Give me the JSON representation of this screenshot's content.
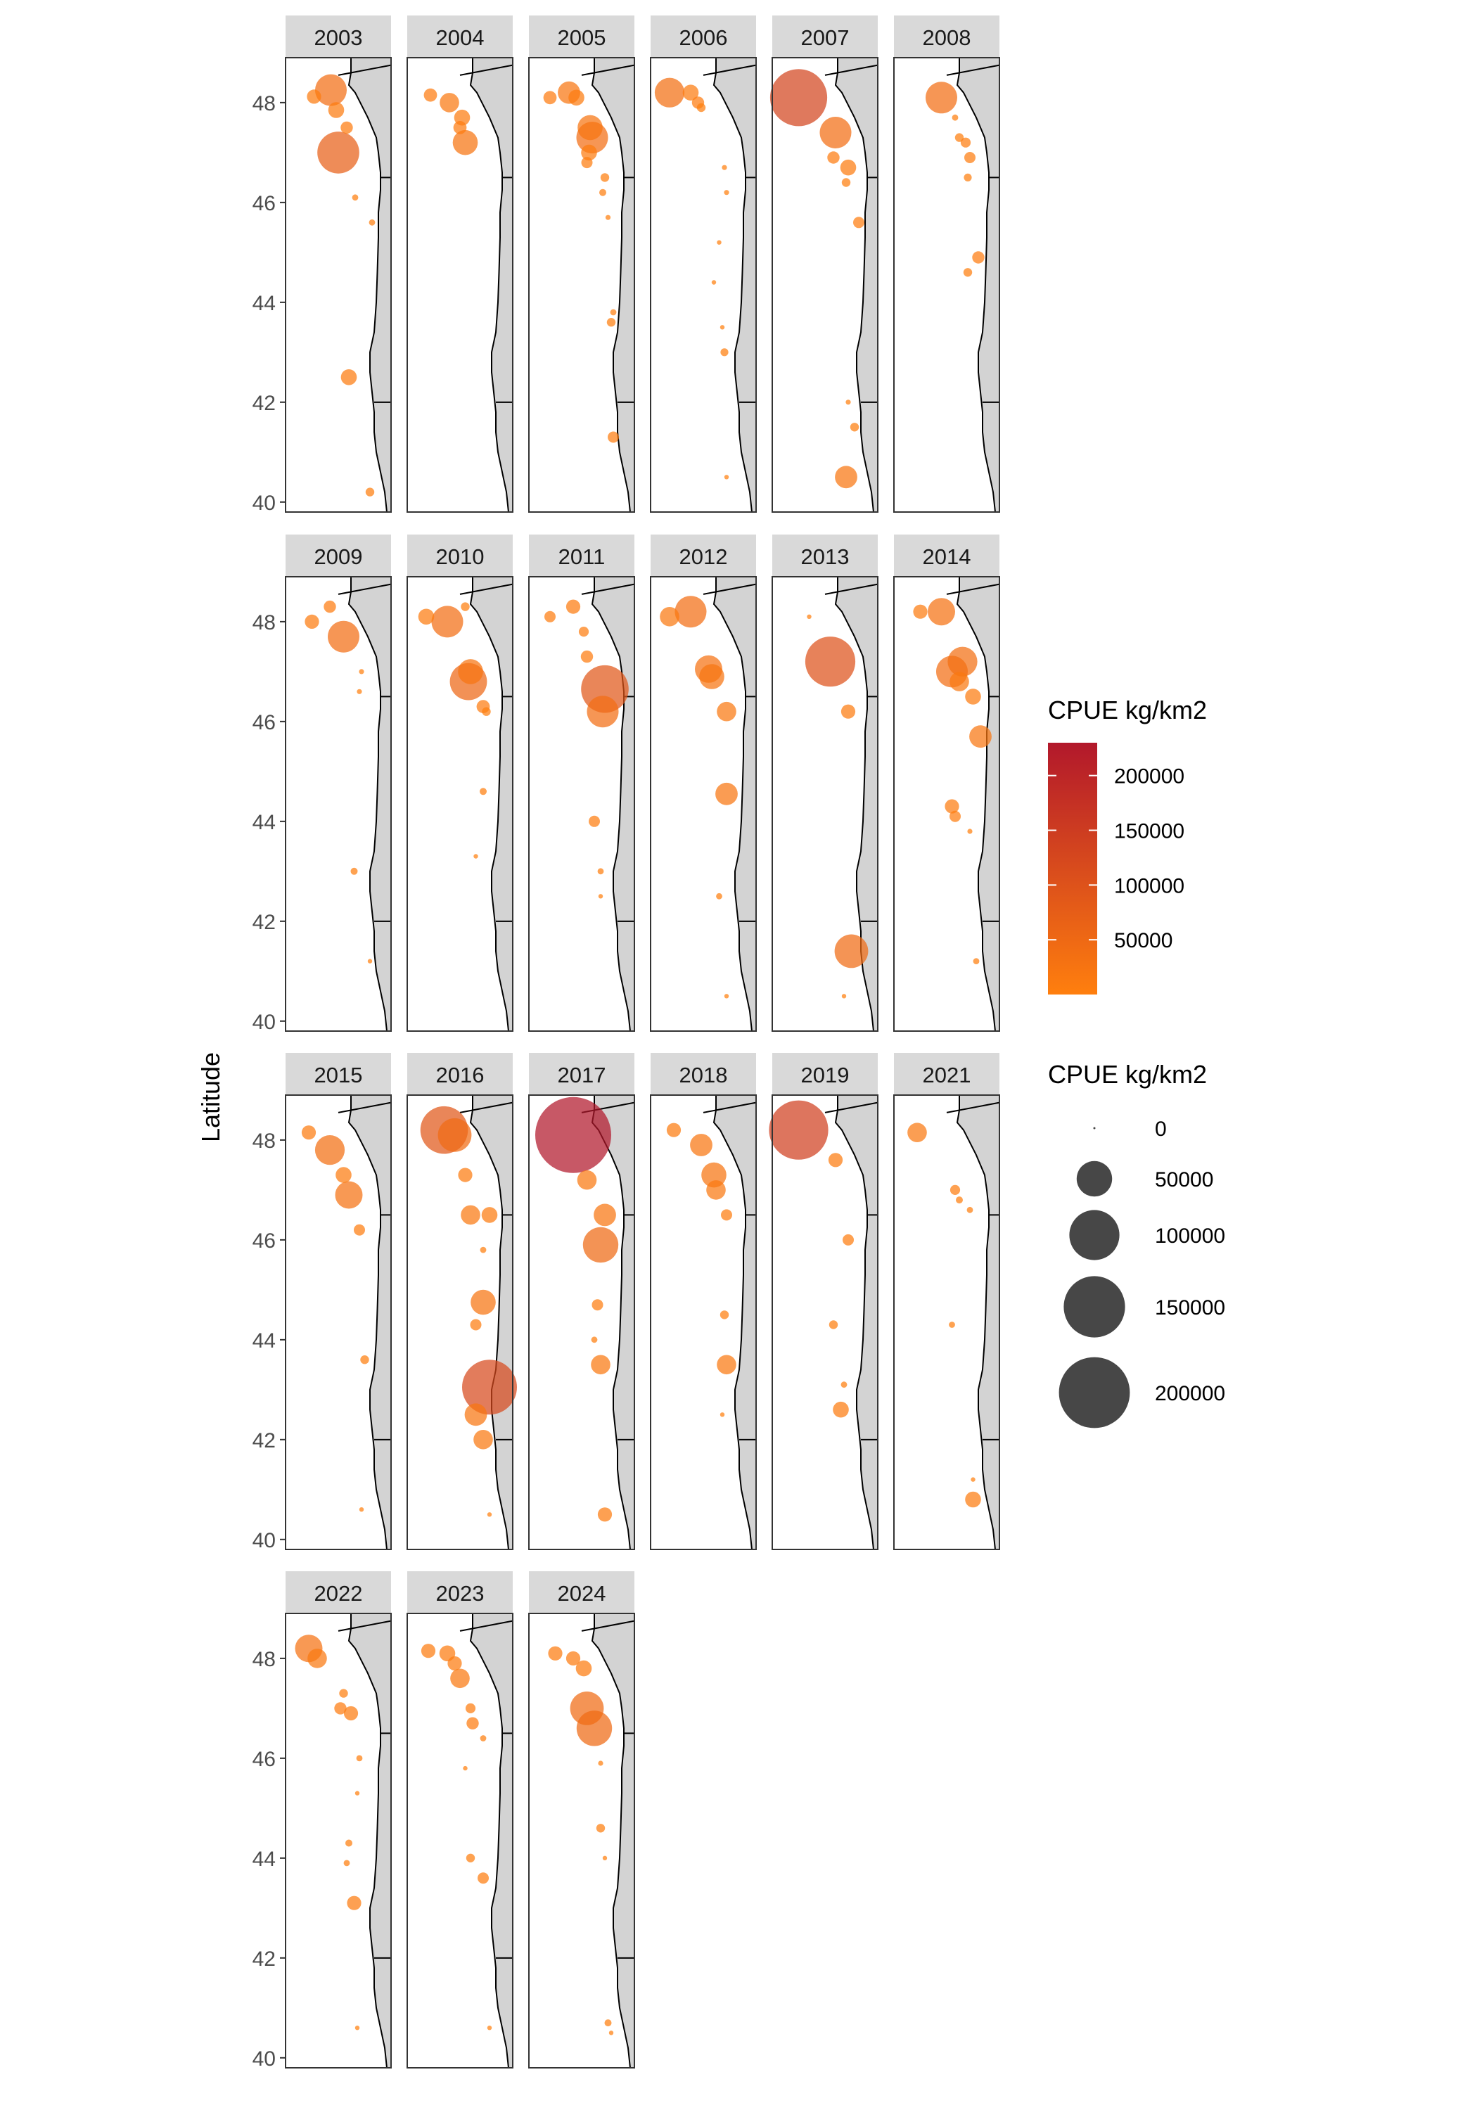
{
  "colors": {
    "panel_border": "#333333",
    "strip_bg": "#d9d9d9",
    "land": "#d3d3d3",
    "coast": "#000000",
    "haul_dot": "#cfcfcf",
    "cpue_low": "#ff7f0e",
    "cpue_high": "#b2182b",
    "legend_size_dot": "#474747"
  },
  "chart_data": {
    "type": "scatter",
    "subtype": "faceted bubble map",
    "title": "",
    "xlabel": "",
    "ylabel": "Latitude",
    "ylim": [
      39.8,
      48.9
    ],
    "y_ticks": [
      40,
      42,
      44,
      46,
      48
    ],
    "y_tick_labels": [
      "40",
      "42",
      "44",
      "46",
      "48"
    ],
    "grid": false,
    "legends": {
      "color": {
        "title": "CPUE kg/km2",
        "position": "right",
        "range": [
          0,
          230000
        ],
        "ticks": [
          50000,
          100000,
          150000,
          200000
        ],
        "tick_labels": [
          "50000",
          "100000",
          "150000",
          "200000"
        ]
      },
      "size": {
        "title": "CPUE kg/km2",
        "position": "right",
        "values": [
          0,
          50000,
          100000,
          150000,
          200000
        ],
        "labels": [
          "0",
          "50000",
          "100000",
          "150000",
          "200000"
        ]
      }
    },
    "facets": [
      {
        "year": "2003",
        "points": [
          [
            0.43,
            48.25,
            40000
          ],
          [
            0.27,
            48.12,
            8000
          ],
          [
            0.48,
            47.85,
            10000
          ],
          [
            0.58,
            47.5,
            6000
          ],
          [
            0.5,
            47.0,
            70000
          ],
          [
            0.66,
            46.1,
            1500
          ],
          [
            0.82,
            45.6,
            1500
          ],
          [
            0.6,
            42.5,
            10000
          ],
          [
            0.8,
            40.2,
            3000
          ]
        ]
      },
      {
        "year": "2004",
        "points": [
          [
            0.22,
            48.15,
            7000
          ],
          [
            0.4,
            48.0,
            15000
          ],
          [
            0.52,
            47.7,
            10000
          ],
          [
            0.5,
            47.5,
            7000
          ],
          [
            0.55,
            47.2,
            25000
          ]
        ]
      },
      {
        "year": "2005",
        "points": [
          [
            0.2,
            48.1,
            7000
          ],
          [
            0.38,
            48.2,
            20000
          ],
          [
            0.45,
            48.1,
            10000
          ],
          [
            0.58,
            47.5,
            25000
          ],
          [
            0.6,
            47.3,
            40000
          ],
          [
            0.57,
            47.0,
            10000
          ],
          [
            0.55,
            46.8,
            5000
          ],
          [
            0.72,
            46.5,
            3000
          ],
          [
            0.7,
            46.2,
            2000
          ],
          [
            0.75,
            45.7,
            1000
          ],
          [
            0.8,
            43.8,
            1500
          ],
          [
            0.78,
            43.6,
            3000
          ],
          [
            0.8,
            41.3,
            5000
          ]
        ]
      },
      {
        "year": "2006",
        "points": [
          [
            0.18,
            48.2,
            35000
          ],
          [
            0.38,
            48.2,
            10000
          ],
          [
            0.45,
            48.0,
            6000
          ],
          [
            0.48,
            47.9,
            3000
          ],
          [
            0.7,
            46.7,
            1000
          ],
          [
            0.72,
            46.2,
            1000
          ],
          [
            0.65,
            45.2,
            800
          ],
          [
            0.6,
            44.4,
            800
          ],
          [
            0.68,
            43.5,
            800
          ],
          [
            0.7,
            43.0,
            2500
          ],
          [
            0.72,
            40.5,
            800
          ]
        ]
      },
      {
        "year": "2007",
        "points": [
          [
            0.25,
            48.1,
            130000
          ],
          [
            0.6,
            47.4,
            40000
          ],
          [
            0.58,
            46.9,
            6000
          ],
          [
            0.72,
            46.7,
            10000
          ],
          [
            0.7,
            46.4,
            3000
          ],
          [
            0.82,
            45.6,
            5000
          ],
          [
            0.72,
            42.0,
            1000
          ],
          [
            0.78,
            41.5,
            3000
          ],
          [
            0.7,
            40.5,
            20000
          ]
        ]
      },
      {
        "year": "2008",
        "points": [
          [
            0.45,
            48.1,
            40000
          ],
          [
            0.58,
            47.7,
            1500
          ],
          [
            0.62,
            47.3,
            3000
          ],
          [
            0.68,
            47.2,
            4000
          ],
          [
            0.72,
            46.9,
            5000
          ],
          [
            0.7,
            46.5,
            2500
          ],
          [
            0.8,
            44.9,
            6000
          ],
          [
            0.7,
            44.6,
            3000
          ]
        ]
      },
      {
        "year": "2009",
        "points": [
          [
            0.25,
            48.0,
            8000
          ],
          [
            0.42,
            48.3,
            6000
          ],
          [
            0.55,
            47.7,
            40000
          ],
          [
            0.72,
            47.0,
            1000
          ],
          [
            0.7,
            46.6,
            1000
          ],
          [
            0.65,
            43.0,
            2000
          ],
          [
            0.8,
            41.2,
            800
          ]
        ]
      },
      {
        "year": "2010",
        "points": [
          [
            0.18,
            48.1,
            10000
          ],
          [
            0.38,
            48.0,
            40000
          ],
          [
            0.55,
            48.3,
            3000
          ],
          [
            0.6,
            47.0,
            25000
          ],
          [
            0.58,
            46.8,
            55000
          ],
          [
            0.72,
            46.3,
            7000
          ],
          [
            0.75,
            46.2,
            3000
          ],
          [
            0.72,
            44.6,
            2000
          ],
          [
            0.65,
            43.3,
            800
          ]
        ]
      },
      {
        "year": "2011",
        "points": [
          [
            0.2,
            48.1,
            5000
          ],
          [
            0.42,
            48.3,
            8000
          ],
          [
            0.52,
            47.8,
            4000
          ],
          [
            0.55,
            47.3,
            6000
          ],
          [
            0.72,
            46.65,
            90000
          ],
          [
            0.7,
            46.2,
            40000
          ],
          [
            0.62,
            44.0,
            5000
          ],
          [
            0.68,
            43.0,
            1500
          ],
          [
            0.68,
            42.5,
            800
          ]
        ]
      },
      {
        "year": "2012",
        "points": [
          [
            0.18,
            48.1,
            15000
          ],
          [
            0.38,
            48.2,
            40000
          ],
          [
            0.55,
            47.05,
            30000
          ],
          [
            0.58,
            46.9,
            25000
          ],
          [
            0.72,
            46.2,
            15000
          ],
          [
            0.72,
            44.55,
            20000
          ],
          [
            0.65,
            42.5,
            1500
          ],
          [
            0.72,
            40.5,
            800
          ]
        ]
      },
      {
        "year": "2013",
        "points": [
          [
            0.35,
            48.1,
            800
          ],
          [
            0.55,
            47.2,
            100000
          ],
          [
            0.72,
            46.2,
            8000
          ],
          [
            0.75,
            41.4,
            45000
          ],
          [
            0.68,
            40.5,
            800
          ]
        ]
      },
      {
        "year": "2014",
        "points": [
          [
            0.25,
            48.2,
            8000
          ],
          [
            0.45,
            48.2,
            30000
          ],
          [
            0.55,
            47.0,
            40000
          ],
          [
            0.65,
            47.2,
            35000
          ],
          [
            0.62,
            46.8,
            15000
          ],
          [
            0.75,
            46.5,
            10000
          ],
          [
            0.82,
            45.7,
            20000
          ],
          [
            0.55,
            44.3,
            8000
          ],
          [
            0.58,
            44.1,
            5000
          ],
          [
            0.72,
            43.8,
            1000
          ],
          [
            0.78,
            41.2,
            1500
          ]
        ]
      },
      {
        "year": "2015",
        "points": [
          [
            0.22,
            48.15,
            8000
          ],
          [
            0.42,
            47.8,
            35000
          ],
          [
            0.55,
            47.3,
            10000
          ],
          [
            0.6,
            46.9,
            30000
          ],
          [
            0.7,
            46.2,
            5000
          ],
          [
            0.75,
            43.6,
            3000
          ],
          [
            0.72,
            40.6,
            800
          ]
        ]
      },
      {
        "year": "2016",
        "points": [
          [
            0.35,
            48.2,
            90000
          ],
          [
            0.45,
            48.1,
            45000
          ],
          [
            0.55,
            47.3,
            8000
          ],
          [
            0.6,
            46.5,
            15000
          ],
          [
            0.78,
            46.5,
            10000
          ],
          [
            0.72,
            45.8,
            1500
          ],
          [
            0.72,
            44.75,
            25000
          ],
          [
            0.65,
            44.3,
            5000
          ],
          [
            0.78,
            43.05,
            120000
          ],
          [
            0.65,
            42.5,
            20000
          ],
          [
            0.72,
            42.0,
            15000
          ],
          [
            0.78,
            40.5,
            800
          ]
        ]
      },
      {
        "year": "2017",
        "points": [
          [
            0.42,
            48.1,
            230000
          ],
          [
            0.55,
            47.2,
            15000
          ],
          [
            0.72,
            46.5,
            20000
          ],
          [
            0.68,
            45.9,
            50000
          ],
          [
            0.65,
            44.7,
            5000
          ],
          [
            0.62,
            44.0,
            1500
          ],
          [
            0.68,
            43.5,
            15000
          ],
          [
            0.72,
            40.5,
            8000
          ]
        ]
      },
      {
        "year": "2018",
        "points": [
          [
            0.22,
            48.2,
            8000
          ],
          [
            0.48,
            47.9,
            20000
          ],
          [
            0.6,
            47.3,
            25000
          ],
          [
            0.62,
            47.0,
            15000
          ],
          [
            0.72,
            46.5,
            5000
          ],
          [
            0.7,
            44.5,
            3000
          ],
          [
            0.72,
            43.5,
            15000
          ],
          [
            0.68,
            42.5,
            800
          ]
        ]
      },
      {
        "year": "2019",
        "points": [
          [
            0.25,
            48.2,
            140000
          ],
          [
            0.6,
            47.6,
            8000
          ],
          [
            0.72,
            46.0,
            5000
          ],
          [
            0.58,
            44.3,
            3000
          ],
          [
            0.68,
            43.1,
            1500
          ],
          [
            0.65,
            42.6,
            10000
          ]
        ]
      },
      {
        "year": "2021",
        "points": [
          [
            0.22,
            48.15,
            15000
          ],
          [
            0.58,
            47.0,
            4000
          ],
          [
            0.62,
            46.8,
            2000
          ],
          [
            0.72,
            46.6,
            1500
          ],
          [
            0.55,
            44.3,
            1500
          ],
          [
            0.75,
            41.2,
            800
          ],
          [
            0.75,
            40.8,
            10000
          ]
        ]
      },
      {
        "year": "2022",
        "points": [
          [
            0.22,
            48.2,
            30000
          ],
          [
            0.3,
            48.0,
            15000
          ],
          [
            0.55,
            47.3,
            3000
          ],
          [
            0.52,
            47.0,
            6000
          ],
          [
            0.62,
            46.9,
            8000
          ],
          [
            0.7,
            46.0,
            1500
          ],
          [
            0.68,
            45.3,
            800
          ],
          [
            0.6,
            44.3,
            2000
          ],
          [
            0.58,
            43.9,
            1500
          ],
          [
            0.65,
            43.1,
            8000
          ],
          [
            0.68,
            40.6,
            800
          ]
        ]
      },
      {
        "year": "2023",
        "points": [
          [
            0.2,
            48.15,
            8000
          ],
          [
            0.38,
            48.1,
            10000
          ],
          [
            0.45,
            47.9,
            8000
          ],
          [
            0.5,
            47.6,
            15000
          ],
          [
            0.6,
            47.0,
            4000
          ],
          [
            0.62,
            46.7,
            6000
          ],
          [
            0.72,
            46.4,
            1500
          ],
          [
            0.55,
            45.8,
            800
          ],
          [
            0.6,
            44.0,
            3000
          ],
          [
            0.72,
            43.6,
            5000
          ],
          [
            0.78,
            40.6,
            800
          ]
        ]
      },
      {
        "year": "2024",
        "points": [
          [
            0.25,
            48.1,
            8000
          ],
          [
            0.42,
            48.0,
            8000
          ],
          [
            0.52,
            47.8,
            10000
          ],
          [
            0.55,
            47.0,
            45000
          ],
          [
            0.62,
            46.6,
            50000
          ],
          [
            0.68,
            45.9,
            1000
          ],
          [
            0.68,
            44.6,
            3000
          ],
          [
            0.72,
            44.0,
            800
          ],
          [
            0.75,
            40.7,
            2000
          ],
          [
            0.78,
            40.5,
            800
          ]
        ]
      }
    ]
  }
}
